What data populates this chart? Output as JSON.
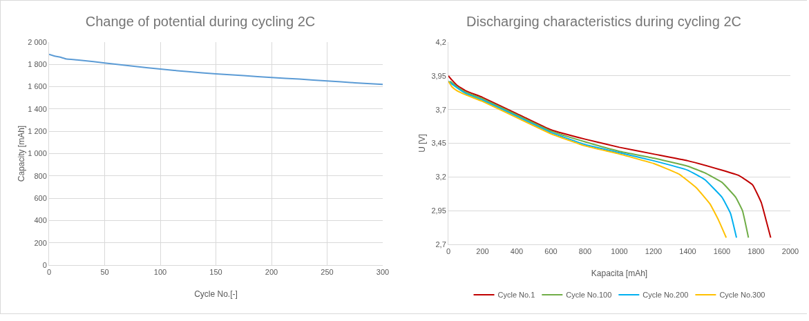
{
  "chart_data": [
    {
      "type": "line",
      "title": "Change of potential during cycling 2C",
      "xlabel": "Cycle No.[-]",
      "ylabel": "Capacity [mAh]",
      "grid": true,
      "legend": false,
      "marker": "none",
      "line_style": "solid",
      "xlim": [
        0,
        300
      ],
      "xticks": [
        0,
        50,
        100,
        150,
        200,
        250,
        300
      ],
      "ylim": [
        0,
        2000
      ],
      "yticks": [
        0,
        200,
        400,
        600,
        800,
        {
          "value": 1000,
          "label": "1 000"
        },
        {
          "value": 1200,
          "label": "1 200"
        },
        {
          "value": 1400,
          "label": "1 400"
        },
        {
          "value": 1600,
          "label": "1 600"
        },
        {
          "value": 1800,
          "label": "1 800"
        },
        {
          "value": 2000,
          "label": "2 000"
        }
      ],
      "series": [
        {
          "color": "#5b9bd5",
          "x": [
            0,
            5,
            10,
            15,
            25,
            40,
            50,
            75,
            100,
            125,
            150,
            175,
            200,
            225,
            250,
            275,
            300
          ],
          "values": [
            1890,
            1875,
            1865,
            1850,
            1840,
            1825,
            1812,
            1785,
            1758,
            1735,
            1715,
            1700,
            1682,
            1668,
            1652,
            1635,
            1620
          ]
        }
      ]
    },
    {
      "type": "line",
      "title": "Discharging characteristics during cycling 2C",
      "xlabel": "Kapacita [mAh]",
      "ylabel": "U [V]",
      "grid": "y",
      "legend": "bottom",
      "marker": "none",
      "line_style": "solid",
      "xlim": [
        0,
        2000
      ],
      "xticks": [
        0,
        200,
        400,
        600,
        800,
        1000,
        1200,
        1400,
        1600,
        1800,
        2000
      ],
      "ylim": [
        2.7,
        4.2
      ],
      "yticks": [
        {
          "value": 2.7,
          "label": "2,7"
        },
        {
          "value": 2.95,
          "label": "2,95"
        },
        {
          "value": 3.2,
          "label": "3,2"
        },
        {
          "value": 3.45,
          "label": "3,45"
        },
        {
          "value": 3.7,
          "label": "3,7"
        },
        {
          "value": 3.95,
          "label": "3,95"
        },
        {
          "value": 4.2,
          "label": "4,2"
        }
      ],
      "series": [
        {
          "name": "Cycle No.1",
          "color": "#c00000",
          "x": [
            0,
            20,
            50,
            100,
            200,
            400,
            600,
            800,
            1000,
            1200,
            1400,
            1600,
            1700,
            1780,
            1830,
            1860,
            1885
          ],
          "values": [
            3.95,
            3.92,
            3.88,
            3.84,
            3.79,
            3.67,
            3.55,
            3.48,
            3.42,
            3.37,
            3.32,
            3.25,
            3.21,
            3.14,
            3.01,
            2.87,
            2.75
          ]
        },
        {
          "name": "Cycle No.100",
          "color": "#70ad47",
          "x": [
            10,
            50,
            100,
            200,
            400,
            600,
            800,
            1000,
            1200,
            1400,
            1500,
            1600,
            1680,
            1720,
            1755
          ],
          "values": [
            3.91,
            3.87,
            3.83,
            3.78,
            3.66,
            3.54,
            3.46,
            3.39,
            3.34,
            3.28,
            3.23,
            3.16,
            3.05,
            2.95,
            2.75
          ]
        },
        {
          "name": "Cycle No.200",
          "color": "#00b0f0",
          "x": [
            0,
            30,
            100,
            200,
            400,
            600,
            800,
            1000,
            1200,
            1400,
            1500,
            1600,
            1650,
            1685
          ],
          "values": [
            3.91,
            3.88,
            3.82,
            3.77,
            3.65,
            3.53,
            3.44,
            3.38,
            3.32,
            3.25,
            3.18,
            3.05,
            2.93,
            2.75
          ]
        },
        {
          "name": "Cycle No.300",
          "color": "#ffc000",
          "x": [
            0,
            20,
            50,
            100,
            200,
            400,
            600,
            800,
            1000,
            1200,
            1350,
            1450,
            1530,
            1580,
            1625
          ],
          "values": [
            3.91,
            3.87,
            3.84,
            3.81,
            3.76,
            3.64,
            3.52,
            3.43,
            3.37,
            3.3,
            3.22,
            3.12,
            3.0,
            2.88,
            2.75
          ]
        }
      ]
    }
  ]
}
